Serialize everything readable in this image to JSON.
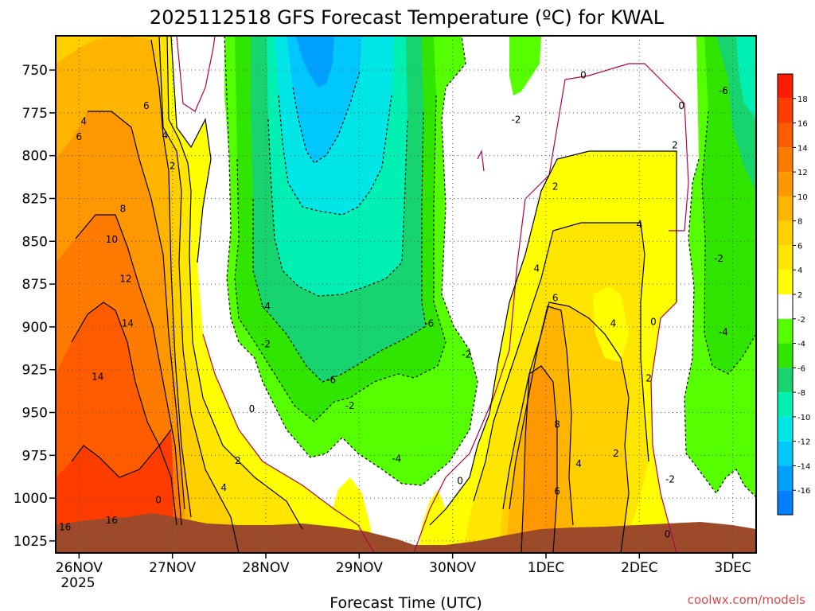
{
  "chart_data": {
    "type": "heatmap",
    "title": "2025112518 GFS Forecast Temperature (ºC) for KWAL",
    "xlabel": "Forecast Time (UTC)",
    "ylabel": "",
    "x_ticks": [
      "26NOV",
      "27NOV",
      "28NOV",
      "29NOV",
      "30NOV",
      "1DEC",
      "2DEC",
      "3DEC"
    ],
    "x_tick_sublabel": "2025",
    "x_range_days": [
      -0.25,
      7.25
    ],
    "y_ticks": [
      750,
      775,
      800,
      825,
      850,
      875,
      900,
      925,
      950,
      975,
      1000,
      1025
    ],
    "y_range": [
      730,
      1032
    ],
    "colorbar": {
      "labels": [
        18,
        16,
        14,
        12,
        10,
        8,
        6,
        4,
        2,
        -2,
        -4,
        -6,
        -8,
        -10,
        -12,
        -14,
        -16
      ],
      "colors": [
        "#ff1c00",
        "#ff3c00",
        "#ff5c00",
        "#ff7a00",
        "#ff9800",
        "#ffb400",
        "#ffcf00",
        "#ffe600",
        "#ffff00",
        "#ffffff",
        "#55ff00",
        "#30e500",
        "#18d46e",
        "#00f0b4",
        "#00e6e6",
        "#00c8ff",
        "#00a0ff",
        "#0080ff"
      ]
    },
    "contour_labels": [
      {
        "text": "4",
        "day": 0.05,
        "p": 780
      },
      {
        "text": "6",
        "day": 0.0,
        "p": 789
      },
      {
        "text": "6",
        "day": 0.72,
        "p": 771
      },
      {
        "text": "4",
        "day": 0.92,
        "p": 788
      },
      {
        "text": "2",
        "day": 1.0,
        "p": 806
      },
      {
        "text": "8",
        "day": 0.47,
        "p": 831
      },
      {
        "text": "10",
        "day": 0.35,
        "p": 849
      },
      {
        "text": "12",
        "day": 0.5,
        "p": 872
      },
      {
        "text": "14",
        "day": 0.52,
        "p": 898
      },
      {
        "text": "14",
        "day": 0.2,
        "p": 929
      },
      {
        "text": "16",
        "day": -0.15,
        "p": 1017
      },
      {
        "text": "16",
        "day": 0.35,
        "p": 1013
      },
      {
        "text": "0",
        "day": 0.85,
        "p": 1001
      },
      {
        "text": "-4",
        "day": 2.0,
        "p": 888
      },
      {
        "text": "-2",
        "day": 2.0,
        "p": 910
      },
      {
        "text": "0",
        "day": 1.85,
        "p": 948
      },
      {
        "text": "2",
        "day": 1.7,
        "p": 978
      },
      {
        "text": "4",
        "day": 1.55,
        "p": 994
      },
      {
        "text": "-6",
        "day": 2.7,
        "p": 931
      },
      {
        "text": "-2",
        "day": 2.9,
        "p": 946
      },
      {
        "text": "-4",
        "day": 3.4,
        "p": 977
      },
      {
        "text": "-6",
        "day": 3.75,
        "p": 898
      },
      {
        "text": "-2",
        "day": 4.15,
        "p": 916
      },
      {
        "text": "0",
        "day": 4.08,
        "p": 990
      },
      {
        "text": "-2",
        "day": 4.68,
        "p": 779
      },
      {
        "text": "0",
        "day": 5.4,
        "p": 753
      },
      {
        "text": "0",
        "day": 6.45,
        "p": 771
      },
      {
        "text": "2",
        "day": 6.38,
        "p": 794
      },
      {
        "text": "2",
        "day": 5.1,
        "p": 818
      },
      {
        "text": "4",
        "day": 6.0,
        "p": 840
      },
      {
        "text": "4",
        "day": 4.9,
        "p": 866
      },
      {
        "text": "6",
        "day": 5.1,
        "p": 883
      },
      {
        "text": "4",
        "day": 5.72,
        "p": 898
      },
      {
        "text": "0",
        "day": 6.15,
        "p": 897
      },
      {
        "text": "2",
        "day": 6.1,
        "p": 930
      },
      {
        "text": "8",
        "day": 5.12,
        "p": 957
      },
      {
        "text": "4",
        "day": 5.35,
        "p": 980
      },
      {
        "text": "2",
        "day": 5.75,
        "p": 974
      },
      {
        "text": "6",
        "day": 5.12,
        "p": 996
      },
      {
        "text": "-6",
        "day": 6.9,
        "p": 762
      },
      {
        "text": "-2",
        "day": 6.85,
        "p": 860
      },
      {
        "text": "-4",
        "day": 6.9,
        "p": 903
      },
      {
        "text": "-2",
        "day": 6.33,
        "p": 989
      },
      {
        "text": "0",
        "day": 6.3,
        "p": 1021
      }
    ]
  },
  "credit": "coolwx.com/models"
}
